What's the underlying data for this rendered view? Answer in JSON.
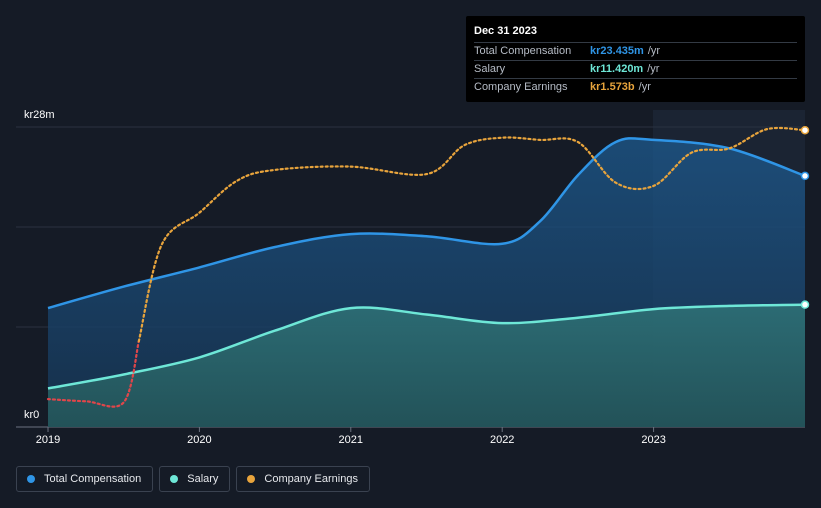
{
  "chart_data": {
    "type": "area",
    "title": "",
    "xlabel": "",
    "ylabel": "",
    "x_ticks": [
      "2019",
      "2020",
      "2021",
      "2022",
      "2023"
    ],
    "y_tick_labels": {
      "top": "kr28m",
      "bottom": "kr0"
    },
    "ylim": [
      0,
      28
    ],
    "y_unit": "kr m",
    "series": [
      {
        "name": "Total Compensation",
        "color": "#2f95e6",
        "points": [
          [
            2019.0,
            11.1
          ],
          [
            2019.5,
            13.1
          ],
          [
            2020.0,
            14.9
          ],
          [
            2020.5,
            16.8
          ],
          [
            2021.0,
            18.0
          ],
          [
            2021.5,
            17.8
          ],
          [
            2022.0,
            17.1
          ],
          [
            2022.25,
            19.2
          ],
          [
            2022.5,
            23.5
          ],
          [
            2022.75,
            26.6
          ],
          [
            2023.0,
            26.8
          ],
          [
            2023.5,
            26.0
          ],
          [
            2024.0,
            23.435
          ]
        ]
      },
      {
        "name": "Salary",
        "color": "#6ee7d7",
        "points": [
          [
            2019.0,
            3.6
          ],
          [
            2019.5,
            4.9
          ],
          [
            2020.0,
            6.5
          ],
          [
            2020.5,
            9.0
          ],
          [
            2021.0,
            11.1
          ],
          [
            2021.5,
            10.5
          ],
          [
            2022.0,
            9.7
          ],
          [
            2022.5,
            10.2
          ],
          [
            2023.0,
            11.0
          ],
          [
            2023.5,
            11.3
          ],
          [
            2024.0,
            11.42
          ]
        ]
      },
      {
        "name": "Company Earnings",
        "color": "#e8a43c",
        "note": "scaled to chart; latest value kr1.573b",
        "points": [
          [
            2019.0,
            2.6
          ],
          [
            2019.25,
            2.4
          ],
          [
            2019.5,
            2.3
          ],
          [
            2019.6,
            8.0
          ],
          [
            2019.75,
            17.0
          ],
          [
            2020.0,
            20.0
          ],
          [
            2020.25,
            23.0
          ],
          [
            2020.5,
            24.0
          ],
          [
            2021.0,
            24.3
          ],
          [
            2021.5,
            23.6
          ],
          [
            2021.75,
            26.3
          ],
          [
            2022.0,
            27.0
          ],
          [
            2022.25,
            26.8
          ],
          [
            2022.5,
            26.6
          ],
          [
            2022.75,
            22.8
          ],
          [
            2023.0,
            22.5
          ],
          [
            2023.25,
            25.6
          ],
          [
            2023.5,
            26.0
          ],
          [
            2023.75,
            27.8
          ],
          [
            2024.0,
            27.7
          ]
        ],
        "loss_color": "#e0464a",
        "loss_until": 2019.6
      }
    ]
  },
  "tooltip": {
    "date": "Dec 31 2023",
    "rows": [
      {
        "label": "Total Compensation",
        "value": "kr23.435m",
        "unit": "/yr",
        "color": "#2f95e6"
      },
      {
        "label": "Salary",
        "value": "kr11.420m",
        "unit": "/yr",
        "color": "#6ee7d7"
      },
      {
        "label": "Company Earnings",
        "value": "kr1.573b",
        "unit": "/yr",
        "color": "#e8a43c"
      }
    ]
  },
  "legend": [
    {
      "label": "Total Compensation",
      "color": "#2f95e6"
    },
    {
      "label": "Salary",
      "color": "#6ee7d7"
    },
    {
      "label": "Company Earnings",
      "color": "#e8a43c"
    }
  ]
}
